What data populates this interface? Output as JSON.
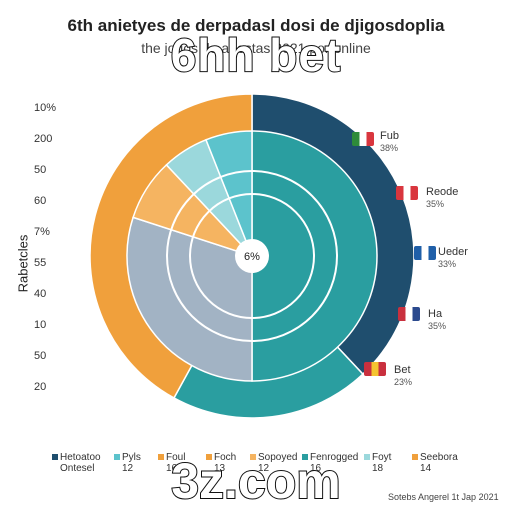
{
  "header": {
    "title": "6th anietyes de derpadasl dosi de djigosdoplia",
    "subtitle": "the jogos de apostas 2021 por online"
  },
  "watermarks": {
    "top": "6hh bet",
    "bottom": "3z.com"
  },
  "colors": {
    "navy": "#1f4e6e",
    "teal": "#2a9ea0",
    "orange": "#f0a03c",
    "slate": "#a2b3c4",
    "light_teal": "#5cc3cc",
    "pale_teal": "#9bd8dc",
    "light_orange": "#f5b461"
  },
  "flag_colors": {
    "flag-italy": [
      "#2e8b3a",
      "#ffffff",
      "#d9363e"
    ],
    "flag-red": [
      "#d9363e",
      "#ffffff",
      "#d9363e"
    ],
    "flag-blue": [
      "#1f5fa8",
      "#ffffff",
      "#1f5fa8"
    ],
    "flag-usa": [
      "#c9303e",
      "#ffffff",
      "#2b4a8e"
    ],
    "flag-spain": [
      "#c9303e",
      "#f4c430",
      "#c9303e"
    ]
  },
  "chart_data": {
    "type": "pie",
    "title": "6th anietyes de derpadasl dosi de djigosdoplia",
    "subtitle": "the jogos de apostas 2021 por online",
    "ylabel": "Rabetcles",
    "y_ticks": [
      "10%",
      "200",
      "50",
      "60",
      "7%",
      "55",
      "40",
      "10",
      "50",
      "20"
    ],
    "center_label": "6%",
    "rings": [
      {
        "ring": "outer",
        "slices": [
          {
            "name": "navy",
            "value": 38,
            "color": "#1f4e6e"
          },
          {
            "name": "teal",
            "value": 20,
            "color": "#2a9ea0"
          },
          {
            "name": "orange",
            "value": 42,
            "color": "#f0a03c"
          }
        ]
      },
      {
        "ring": "middle",
        "slices": [
          {
            "name": "teal",
            "value": 50,
            "color": "#2a9ea0"
          },
          {
            "name": "slate",
            "value": 30,
            "color": "#a2b3c4"
          },
          {
            "name": "light_orange",
            "value": 8,
            "color": "#f5b461"
          },
          {
            "name": "pale_teal",
            "value": 6,
            "color": "#9bd8dc"
          },
          {
            "name": "light_teal",
            "value": 6,
            "color": "#5cc3cc"
          }
        ]
      }
    ],
    "side_labels": [
      {
        "label": "Fub",
        "value": "38%",
        "flag": "flag-italy"
      },
      {
        "label": "Reode",
        "value": "35%",
        "flag": "flag-red"
      },
      {
        "label": "Ueder",
        "value": "33%",
        "flag": "flag-blue"
      },
      {
        "label": "Ha",
        "value": "35%",
        "flag": "flag-usa"
      },
      {
        "label": "Bet",
        "value": "23%",
        "flag": "flag-spain"
      }
    ],
    "legend": [
      {
        "name": "Hetoatoo",
        "value": "Ontesel",
        "color": "#1f4e6e"
      },
      {
        "name": "Pyls",
        "value": "12",
        "color": "#5cc3cc"
      },
      {
        "name": "Foul",
        "value": "16",
        "color": "#f0a03c"
      },
      {
        "name": "Foch",
        "value": "13",
        "color": "#f0a03c"
      },
      {
        "name": "Sopoyed",
        "value": "12",
        "color": "#f5b461"
      },
      {
        "name": "Fenrogged",
        "value": "16",
        "color": "#2a9ea0"
      },
      {
        "name": "Foyt",
        "value": "18",
        "color": "#9bd8dc"
      },
      {
        "name": "Seebora",
        "value": "14",
        "color": "#f0a03c"
      }
    ],
    "source": "Sotebs Angerel 1t Jap 2021"
  }
}
